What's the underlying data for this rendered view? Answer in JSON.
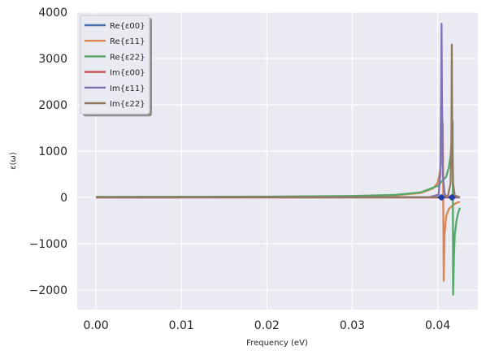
{
  "chart_data": {
    "type": "line",
    "xlabel": "Frequency (eV)",
    "ylabel": "ε(ω)",
    "xlim": [
      -0.0022,
      0.0447
    ],
    "ylim": [
      -2420,
      4000
    ],
    "xticks": [
      0.0,
      0.01,
      0.02,
      0.03,
      0.04
    ],
    "xtick_labels": [
      "0.00",
      "0.01",
      "0.02",
      "0.03",
      "0.04"
    ],
    "yticks": [
      -2000,
      -1000,
      0,
      1000,
      2000,
      3000,
      4000
    ],
    "ytick_labels": [
      "−2000",
      "−1000",
      "0",
      "1000",
      "2000",
      "3000",
      "4000"
    ],
    "grid": true,
    "legend_position": "upper-left",
    "background": "#EAEAF2",
    "series": [
      {
        "name": "Re{ε00}",
        "color": "#4C72B0",
        "points": [
          [
            0.0,
            5
          ],
          [
            0.04,
            5
          ],
          [
            0.0405,
            5
          ],
          [
            0.041,
            5
          ],
          [
            0.0415,
            5
          ],
          [
            0.042,
            5
          ],
          [
            0.0426,
            5
          ]
        ]
      },
      {
        "name": "Re{ε11}",
        "color": "#DD8452",
        "points": [
          [
            0.0,
            10
          ],
          [
            0.02,
            14
          ],
          [
            0.03,
            25
          ],
          [
            0.035,
            45
          ],
          [
            0.038,
            95
          ],
          [
            0.0395,
            200
          ],
          [
            0.04,
            320
          ],
          [
            0.0403,
            600
          ],
          [
            0.0405,
            1000
          ],
          [
            0.0406,
            1600
          ],
          [
            0.0407,
            -1800
          ],
          [
            0.0408,
            -800
          ],
          [
            0.041,
            -400
          ],
          [
            0.0413,
            -250
          ],
          [
            0.0418,
            -160
          ],
          [
            0.0423,
            -110
          ],
          [
            0.0426,
            -100
          ]
        ]
      },
      {
        "name": "Re{ε22}",
        "color": "#55A868",
        "points": [
          [
            0.0,
            12
          ],
          [
            0.02,
            17
          ],
          [
            0.03,
            30
          ],
          [
            0.035,
            55
          ],
          [
            0.038,
            110
          ],
          [
            0.04,
            250
          ],
          [
            0.041,
            450
          ],
          [
            0.0413,
            650
          ],
          [
            0.0415,
            900
          ],
          [
            0.0417,
            1400
          ],
          [
            0.04175,
            1650
          ],
          [
            0.0418,
            -2100
          ],
          [
            0.0419,
            -1300
          ],
          [
            0.042,
            -800
          ],
          [
            0.0422,
            -500
          ],
          [
            0.0424,
            -330
          ],
          [
            0.0426,
            -220
          ]
        ]
      },
      {
        "name": "Im{ε00}",
        "color": "#C44E52",
        "points": [
          [
            0.0,
            0
          ],
          [
            0.04,
            0
          ],
          [
            0.0426,
            0
          ]
        ]
      },
      {
        "name": "Im{ε11}",
        "color": "#8172B3",
        "points": [
          [
            0.0,
            1
          ],
          [
            0.039,
            5
          ],
          [
            0.0401,
            60
          ],
          [
            0.0403,
            500
          ],
          [
            0.0404,
            2200
          ],
          [
            0.04045,
            3750
          ],
          [
            0.0405,
            2200
          ],
          [
            0.0406,
            500
          ],
          [
            0.0408,
            80
          ],
          [
            0.041,
            20
          ],
          [
            0.0426,
            3
          ]
        ]
      },
      {
        "name": "Im{ε22}",
        "color": "#937860",
        "points": [
          [
            0.0,
            1
          ],
          [
            0.04,
            5
          ],
          [
            0.0412,
            40
          ],
          [
            0.0415,
            300
          ],
          [
            0.0416,
            1200
          ],
          [
            0.04165,
            3300
          ],
          [
            0.0417,
            1200
          ],
          [
            0.0418,
            300
          ],
          [
            0.042,
            40
          ],
          [
            0.0426,
            5
          ]
        ]
      }
    ],
    "markers": {
      "color": "#1f3ea8",
      "points": [
        [
          0.04035,
          0
        ],
        [
          0.0405,
          0
        ],
        [
          0.0416,
          0
        ],
        [
          0.04175,
          0
        ]
      ]
    }
  }
}
